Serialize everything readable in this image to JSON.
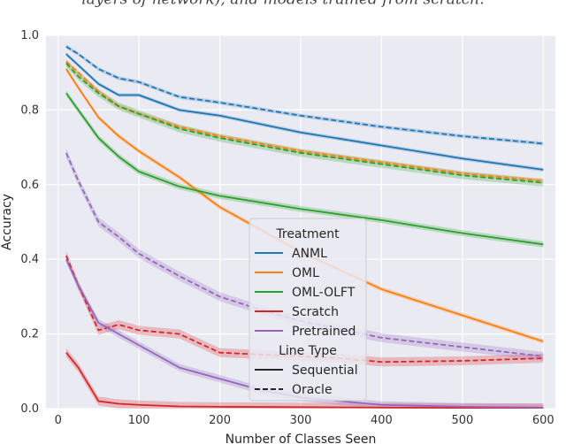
{
  "caption_fragment": "layers of network), and models trained from scratch.",
  "chart_data": {
    "type": "line",
    "title": "",
    "xlabel": "Number of Classes Seen",
    "ylabel": "Accuracy",
    "xlim": [
      -15,
      615
    ],
    "ylim": [
      0,
      1.0
    ],
    "xticks": [
      0,
      100,
      200,
      300,
      400,
      500,
      600
    ],
    "yticks": [
      0.0,
      0.2,
      0.4,
      0.6,
      0.8,
      1.0
    ],
    "ytick_labels": [
      "0.0",
      "0.2",
      "0.4",
      "0.6",
      "0.8",
      "1.0"
    ],
    "grid": true,
    "series": [
      {
        "name": "ANML Sequential",
        "treatment": "ANML",
        "line_type": "Sequential",
        "color": "#1f77b4",
        "dash": "solid",
        "x": [
          10,
          25,
          50,
          75,
          100,
          150,
          200,
          300,
          400,
          500,
          600
        ],
        "y": [
          0.95,
          0.92,
          0.87,
          0.84,
          0.84,
          0.8,
          0.785,
          0.74,
          0.705,
          0.67,
          0.64
        ],
        "band": 0.005
      },
      {
        "name": "ANML Oracle",
        "treatment": "ANML",
        "line_type": "Oracle",
        "color": "#1f77b4",
        "dash": "dashed",
        "x": [
          10,
          25,
          50,
          75,
          100,
          150,
          200,
          300,
          400,
          500,
          600
        ],
        "y": [
          0.97,
          0.95,
          0.91,
          0.885,
          0.875,
          0.835,
          0.82,
          0.785,
          0.755,
          0.73,
          0.71
        ],
        "band": 0.005
      },
      {
        "name": "OML Sequential",
        "treatment": "OML",
        "line_type": "Sequential",
        "color": "#ff7f0e",
        "dash": "solid",
        "x": [
          10,
          25,
          50,
          75,
          100,
          150,
          200,
          250,
          300,
          400,
          500,
          600
        ],
        "y": [
          0.91,
          0.86,
          0.78,
          0.73,
          0.69,
          0.62,
          0.54,
          0.48,
          0.42,
          0.32,
          0.25,
          0.18
        ],
        "band": 0.006
      },
      {
        "name": "OML Oracle",
        "treatment": "OML",
        "line_type": "Oracle",
        "color": "#ff7f0e",
        "dash": "dashed",
        "x": [
          10,
          25,
          50,
          75,
          100,
          150,
          200,
          300,
          400,
          500,
          600
        ],
        "y": [
          0.93,
          0.9,
          0.85,
          0.81,
          0.79,
          0.755,
          0.73,
          0.69,
          0.66,
          0.63,
          0.61
        ],
        "band": 0.006
      },
      {
        "name": "OML-OLFT Sequential",
        "treatment": "OML-OLFT",
        "line_type": "Sequential",
        "color": "#2ca02c",
        "dash": "solid",
        "x": [
          10,
          25,
          50,
          75,
          100,
          150,
          200,
          300,
          400,
          500,
          600
        ],
        "y": [
          0.845,
          0.8,
          0.725,
          0.675,
          0.635,
          0.595,
          0.57,
          0.535,
          0.505,
          0.47,
          0.44
        ],
        "band": 0.008
      },
      {
        "name": "OML-OLFT Oracle",
        "treatment": "OML-OLFT",
        "line_type": "Oracle",
        "color": "#2ca02c",
        "dash": "dashed",
        "x": [
          10,
          25,
          50,
          75,
          100,
          150,
          200,
          300,
          400,
          500,
          600
        ],
        "y": [
          0.925,
          0.89,
          0.845,
          0.81,
          0.79,
          0.75,
          0.725,
          0.685,
          0.655,
          0.625,
          0.605
        ],
        "band": 0.01
      },
      {
        "name": "Scratch Sequential",
        "treatment": "Scratch",
        "line_type": "Sequential",
        "color": "#d62728",
        "dash": "solid",
        "x": [
          10,
          25,
          50,
          75,
          100,
          150,
          200,
          300,
          400,
          500,
          600
        ],
        "y": [
          0.15,
          0.11,
          0.02,
          0.013,
          0.01,
          0.006,
          0.005,
          0.004,
          0.003,
          0.002,
          0.002
        ],
        "band": 0.012
      },
      {
        "name": "Scratch Oracle",
        "treatment": "Scratch",
        "line_type": "Oracle",
        "color": "#d62728",
        "dash": "dashed",
        "x": [
          10,
          25,
          50,
          75,
          100,
          150,
          200,
          250,
          300,
          350,
          400,
          500,
          600
        ],
        "y": [
          0.41,
          0.33,
          0.21,
          0.225,
          0.21,
          0.2,
          0.15,
          0.145,
          0.14,
          0.135,
          0.125,
          0.128,
          0.135
        ],
        "band": 0.012
      },
      {
        "name": "Pretrained Sequential",
        "treatment": "Pretrained",
        "line_type": "Sequential",
        "color": "#9467bd",
        "dash": "solid",
        "x": [
          10,
          25,
          50,
          75,
          100,
          150,
          200,
          250,
          300,
          400,
          500,
          600
        ],
        "y": [
          0.4,
          0.33,
          0.23,
          0.2,
          0.17,
          0.11,
          0.08,
          0.05,
          0.03,
          0.01,
          0.005,
          0.003
        ],
        "band": 0.01
      },
      {
        "name": "Pretrained Oracle",
        "treatment": "Pretrained",
        "line_type": "Oracle",
        "color": "#9467bd",
        "dash": "dashed",
        "x": [
          10,
          25,
          50,
          75,
          100,
          150,
          200,
          250,
          300,
          400,
          500,
          600
        ],
        "y": [
          0.685,
          0.61,
          0.5,
          0.46,
          0.415,
          0.355,
          0.3,
          0.265,
          0.235,
          0.19,
          0.165,
          0.14
        ],
        "band": 0.012
      }
    ],
    "legend": {
      "placement": "center",
      "title": "Treatment",
      "entries": [
        {
          "label": "ANML",
          "color": "#1f77b4",
          "dash": "solid"
        },
        {
          "label": "OML",
          "color": "#ff7f0e",
          "dash": "solid"
        },
        {
          "label": "OML-OLFT",
          "color": "#2ca02c",
          "dash": "solid"
        },
        {
          "label": "Scratch",
          "color": "#d62728",
          "dash": "solid"
        },
        {
          "label": "Pretrained",
          "color": "#9467bd",
          "dash": "solid"
        }
      ],
      "subtitle": "Line Type",
      "style_entries": [
        {
          "label": "Sequential",
          "color": "#262626",
          "dash": "solid"
        },
        {
          "label": "Oracle",
          "color": "#262626",
          "dash": "dashed"
        }
      ]
    }
  }
}
